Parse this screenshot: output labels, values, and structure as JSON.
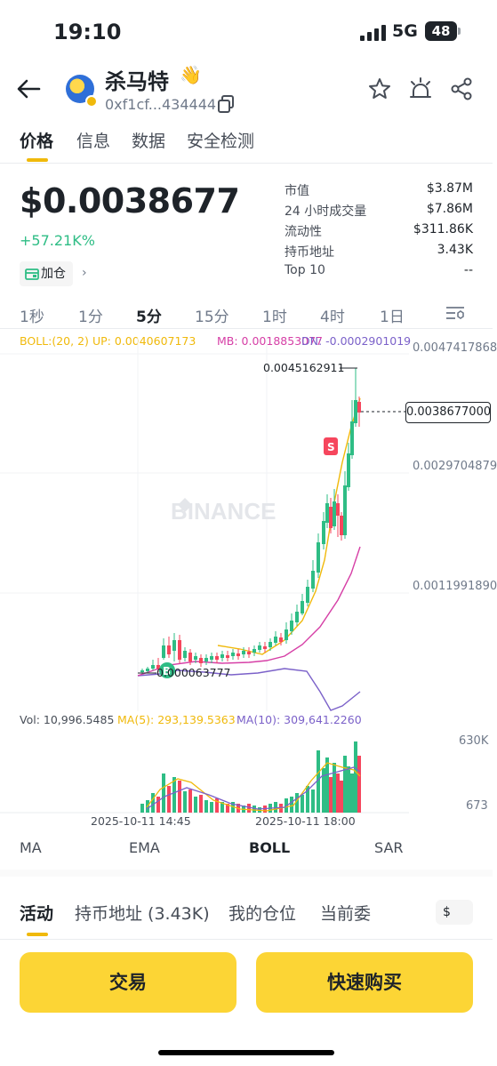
{
  "status_bar": {
    "time": "19:10",
    "network": "5G",
    "battery": "48"
  },
  "header": {
    "token_name": "杀马特",
    "token_emoji": "👋",
    "address": "0xf1cf...434444",
    "icons": [
      "back-arrow-icon",
      "token-avatar",
      "copy-icon",
      "star-icon",
      "alert-icon",
      "share-icon"
    ]
  },
  "tabs": [
    {
      "label": "价格",
      "active": true
    },
    {
      "label": "信息"
    },
    {
      "label": "数据"
    },
    {
      "label": "安全检测"
    }
  ],
  "price": {
    "value": "$0.0038677",
    "change": "+57.21K%",
    "add_position": "加仓"
  },
  "stats": [
    {
      "label": "市值",
      "value": "$3.87M"
    },
    {
      "label": "24 小时成交量",
      "value": "$7.86M"
    },
    {
      "label": "流动性",
      "value": "$311.86K"
    },
    {
      "label": "持币地址",
      "value": "3.43K"
    },
    {
      "label": "Top 10",
      "value": "--"
    }
  ],
  "intervals": [
    {
      "label": "1秒"
    },
    {
      "label": "1分"
    },
    {
      "label": "5分",
      "active": true
    },
    {
      "label": "15分"
    },
    {
      "label": "1时"
    },
    {
      "label": "4时"
    },
    {
      "label": "1日"
    }
  ],
  "chart": {
    "boll_label": "BOLL:(20, 2)",
    "up_label": "UP: 0.0040607173",
    "mb_label": "MB: 0.0018853077",
    "dn_label": "DN: -0.0002901019",
    "y_labels": [
      "0.0047417868",
      "0.0029704879",
      "0.0011991890"
    ],
    "high_label": "0.0045162911",
    "low_label": "0.000063777",
    "current_price": "0.0038677000",
    "buy_marker": "B",
    "sell_marker": "S",
    "watermark": "BINANCE",
    "vol_label": "Vol: 10,996.5485",
    "ma5_label": "MA(5): 293,139.5363",
    "ma10_label": "MA(10): 309,641.2260",
    "vol_y_top": "630K",
    "vol_y_bottom": "673",
    "date_left": "2025-10-11 14:45",
    "date_right": "2025-10-11 18:00",
    "colors": {
      "up": "#2ebd85",
      "down": "#f6465d",
      "boll_up": "#f0b90b",
      "boll_mb": "#d63fa6",
      "boll_dn": "#7b61c9"
    }
  },
  "indicator_tabs": [
    {
      "label": "MA"
    },
    {
      "label": "EMA"
    },
    {
      "label": "BOLL",
      "active": true
    },
    {
      "label": "SAR"
    }
  ],
  "bottom_tabs": [
    {
      "label": "活动",
      "active": true
    },
    {
      "label": "持币地址 (3.43K)"
    },
    {
      "label": "我的仓位"
    },
    {
      "label": "当前委"
    }
  ],
  "currency": "$",
  "actions": {
    "trade": "交易",
    "quick_buy": "快速购买"
  }
}
